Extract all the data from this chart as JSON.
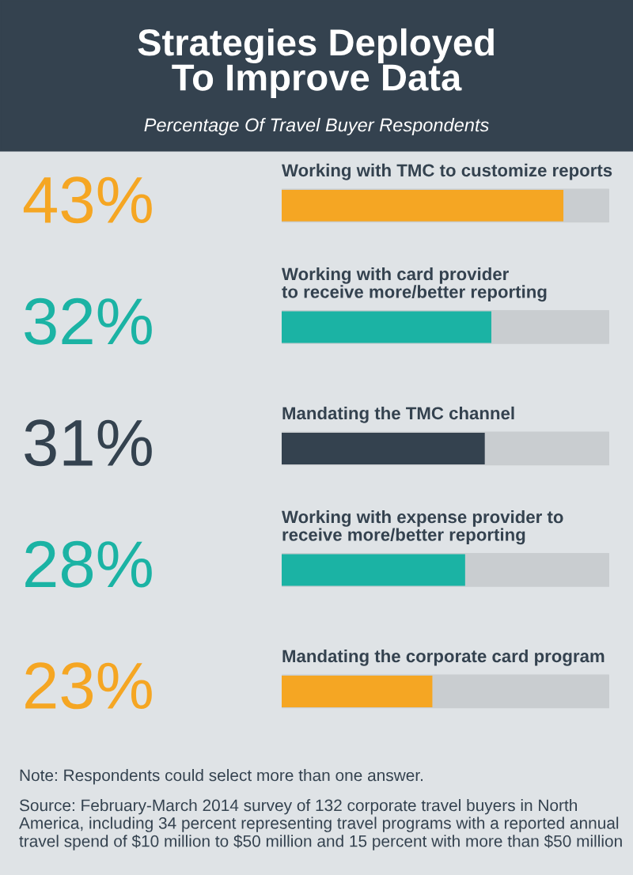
{
  "chart_data": {
    "type": "bar",
    "orientation": "horizontal",
    "title": "Strategies Deployed\nTo Improve Data",
    "subtitle": "Percentage Of Travel Buyer Respondents",
    "categories": [
      "Working with TMC to customize reports",
      "Working with card provider\nto receive more/better reporting",
      "Mandating the TMC channel",
      "Working with expense provider to\nreceive more/better reporting",
      "Mandating the corporate card program"
    ],
    "values": [
      43,
      32,
      31,
      28,
      23
    ],
    "colors": [
      "#f5a623",
      "#1bb3a4",
      "#34424f",
      "#1bb3a4",
      "#f5a623"
    ],
    "value_labels": [
      "43%",
      "32%",
      "31%",
      "28%",
      "23%"
    ],
    "xlim": [
      0,
      50
    ],
    "annotations": [
      "Note: Respondents could select more than one answer.",
      "Source: February-March 2014 survey of 132 corporate travel buyers in North America, including 34 percent representing travel programs with a reported annual travel spend of $10 million to $50 million and 15 percent with more than $50 million"
    ]
  }
}
